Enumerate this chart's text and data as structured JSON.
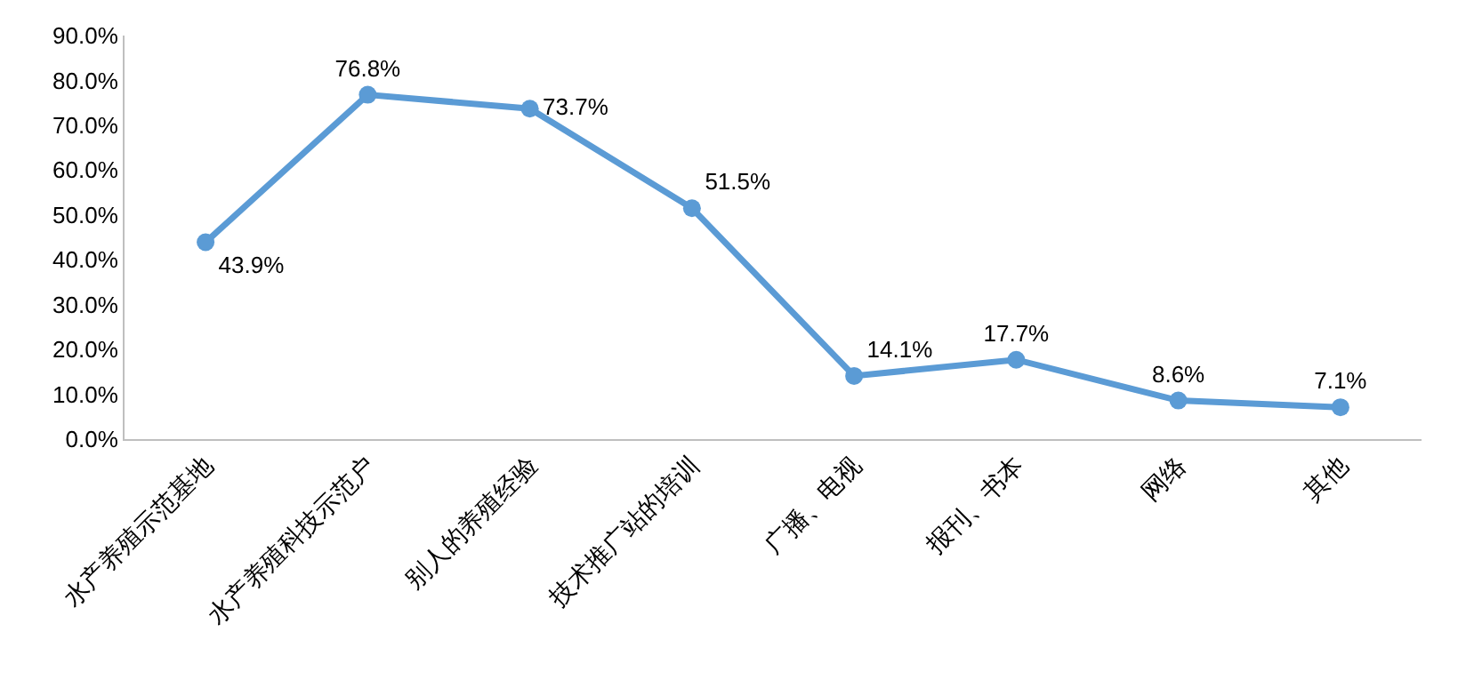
{
  "chart_data": {
    "type": "line",
    "categories": [
      "水产养殖示范基地",
      "水产养殖科技示范户",
      "别人的养殖经验",
      "技术推广站的培训",
      "广播、电视",
      "报刊、书本",
      "网络",
      "其他"
    ],
    "series": [
      {
        "color": "#5b9bd5",
        "values": [
          43.9,
          76.8,
          73.7,
          51.5,
          14.1,
          17.7,
          8.6,
          7.1
        ],
        "value_labels": [
          "43.9%",
          "76.8%",
          "73.7%",
          "51.5%",
          "14.1%",
          "17.7%",
          "8.6%",
          "7.1%"
        ]
      }
    ],
    "ylim": [
      0,
      90
    ],
    "yticks": [
      {
        "value": 0,
        "label": "0.0%"
      },
      {
        "value": 10,
        "label": "10.0%"
      },
      {
        "value": 20,
        "label": "20.0%"
      },
      {
        "value": 30,
        "label": "30.0%"
      },
      {
        "value": 40,
        "label": "40.0%"
      },
      {
        "value": 50,
        "label": "50.0%"
      },
      {
        "value": 60,
        "label": "60.0%"
      },
      {
        "value": 70,
        "label": "70.0%"
      },
      {
        "value": 80,
        "label": "80.0%"
      },
      {
        "value": 90,
        "label": "90.0%"
      }
    ],
    "legend": false,
    "marker": "circle",
    "line_style": "solid"
  }
}
